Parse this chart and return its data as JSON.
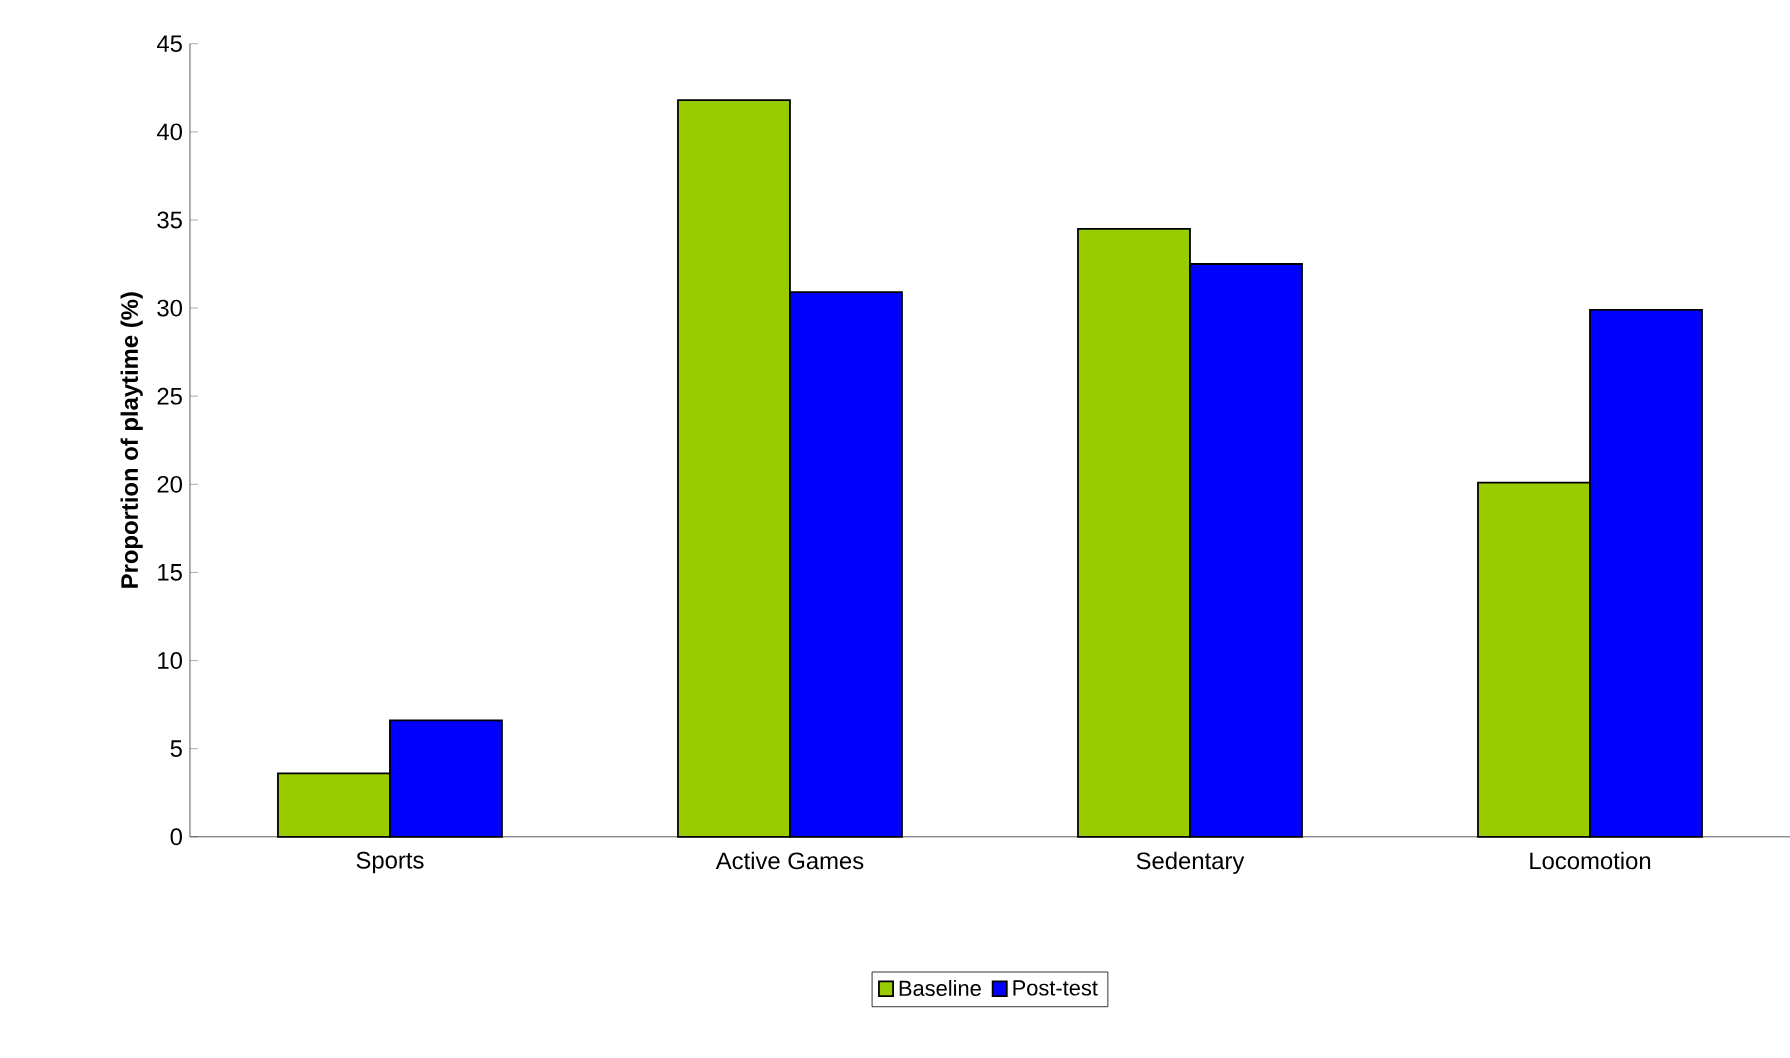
{
  "chart_data": {
    "type": "bar",
    "ylabel": "Proportion of playtime (%)",
    "categories": [
      "Sports",
      "Active Games",
      "Sedentary",
      "Locomotion"
    ],
    "series": [
      {
        "name": "Baseline",
        "color": "#99cc00",
        "values": [
          3.6,
          41.8,
          34.5,
          20.1
        ]
      },
      {
        "name": "Post-test",
        "color": "#0000ff",
        "values": [
          6.6,
          30.9,
          32.5,
          29.9
        ]
      }
    ],
    "ylim": [
      0,
      45
    ],
    "yticks": [
      0,
      5,
      10,
      15,
      20,
      25,
      30,
      35,
      40,
      45
    ],
    "grid": false,
    "legend": "bottom"
  }
}
